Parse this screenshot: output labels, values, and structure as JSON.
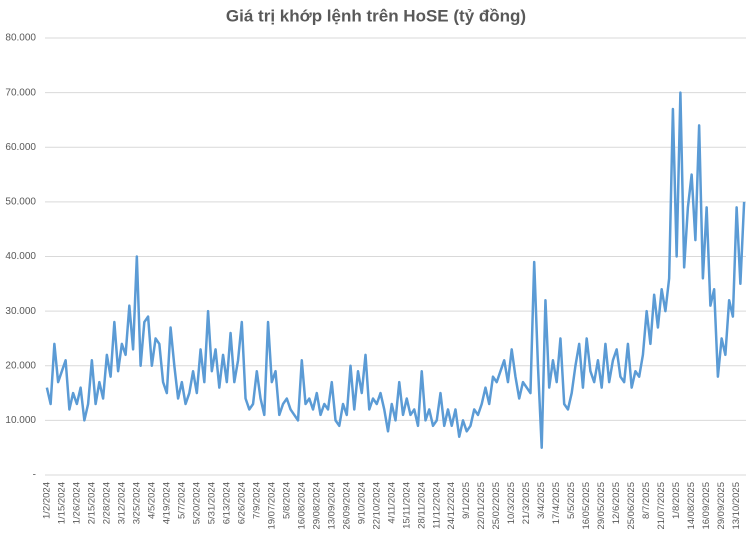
{
  "chart_data": {
    "type": "line",
    "title": "Giá trị khớp lệnh trên HoSE (tỷ đồng)",
    "categories": [
      "1/2/2024",
      null,
      null,
      null,
      "1/15/2024",
      null,
      null,
      null,
      "1/26/2024",
      null,
      null,
      null,
      "2/15/2024",
      null,
      null,
      null,
      "2/28/2024",
      null,
      null,
      null,
      "3/12/2024",
      null,
      null,
      null,
      "3/25/2024",
      null,
      null,
      null,
      "4/5/2024",
      null,
      null,
      null,
      "4/19/2024",
      null,
      null,
      null,
      "5/7/2024",
      null,
      null,
      null,
      "5/20/2024",
      null,
      null,
      null,
      "5/31/2024",
      null,
      null,
      null,
      "6/13/2024",
      null,
      null,
      null,
      "6/26/2024",
      null,
      null,
      null,
      "7/9/2024",
      null,
      null,
      null,
      "19/07/2024",
      null,
      null,
      null,
      "5/8/2024",
      null,
      null,
      null,
      "16/08/2024",
      null,
      null,
      null,
      "29/08/2024",
      null,
      null,
      null,
      "13/09/2024",
      null,
      null,
      null,
      "26/09/2024",
      null,
      null,
      null,
      "9/10/2024",
      null,
      null,
      null,
      "22/10/2024",
      null,
      null,
      null,
      "4/11/2024",
      null,
      null,
      null,
      "15/11/2024",
      null,
      null,
      null,
      "28/11/2024",
      null,
      null,
      null,
      "11/12/2024",
      null,
      null,
      null,
      "24/12/2024",
      null,
      null,
      null,
      "9/1/2025",
      null,
      null,
      null,
      "22/01/2025",
      null,
      null,
      null,
      "25/02/2025",
      null,
      null,
      null,
      "10/3/2025",
      null,
      null,
      null,
      "21/3/2025",
      null,
      null,
      null,
      "3/4/2025",
      null,
      null,
      null,
      "17/4/2025",
      null,
      null,
      null,
      "5/5/2025",
      null,
      null,
      null,
      "16/05/2025",
      null,
      null,
      null,
      "29/05/2025",
      null,
      null,
      null,
      "12/6/2025",
      null,
      null,
      null,
      "25/06/2025",
      null,
      null,
      null,
      "8/7/2025",
      null,
      null,
      null,
      "21/07/2025",
      null,
      null,
      null,
      "1/8/2025",
      null,
      null,
      null,
      "14/08/2025",
      null,
      null,
      null,
      "16/09/2025",
      null,
      null,
      null,
      "29/09/2025",
      null,
      null,
      null,
      "13/10/2025",
      null,
      null
    ],
    "series": [
      {
        "name": "Giá trị khớp lệnh",
        "color": "#5b9bd5",
        "values": [
          16000,
          13000,
          24000,
          17000,
          19000,
          21000,
          12000,
          15000,
          13000,
          16000,
          10000,
          13000,
          21000,
          13000,
          17000,
          14000,
          22000,
          18000,
          28000,
          19000,
          24000,
          22000,
          31000,
          23000,
          40000,
          20000,
          28000,
          29000,
          20000,
          25000,
          24000,
          17000,
          15000,
          27000,
          20000,
          14000,
          17000,
          13000,
          15000,
          19000,
          15000,
          23000,
          17000,
          30000,
          19000,
          23000,
          16000,
          22000,
          17000,
          26000,
          17000,
          21000,
          28000,
          14000,
          12000,
          13000,
          19000,
          14000,
          11000,
          28000,
          17000,
          19000,
          11000,
          13000,
          14000,
          12000,
          11000,
          10000,
          21000,
          13000,
          14000,
          12000,
          15000,
          11000,
          13000,
          12000,
          17000,
          10000,
          9000,
          13000,
          11000,
          20000,
          12000,
          19000,
          15000,
          22000,
          12000,
          14000,
          13000,
          15000,
          12000,
          8000,
          13000,
          10000,
          17000,
          11000,
          14000,
          11000,
          12000,
          9000,
          19000,
          10000,
          12000,
          9000,
          10000,
          15000,
          9000,
          12000,
          9000,
          12000,
          7000,
          10000,
          8000,
          9000,
          12000,
          11000,
          13000,
          16000,
          13000,
          18000,
          17000,
          19000,
          21000,
          17000,
          23000,
          18000,
          14000,
          17000,
          16000,
          15000,
          39000,
          20000,
          5000,
          32000,
          16000,
          21000,
          17000,
          25000,
          13000,
          12000,
          15000,
          20000,
          24000,
          16000,
          25000,
          19000,
          17000,
          21000,
          16000,
          24000,
          17000,
          21000,
          23000,
          18000,
          17000,
          24000,
          16000,
          19000,
          18000,
          22000,
          30000,
          24000,
          33000,
          27000,
          34000,
          30000,
          36000,
          67000,
          40000,
          70000,
          38000,
          49000,
          55000,
          43000,
          64000,
          36000,
          49000,
          31000,
          34000,
          18000,
          25000,
          22000,
          32000,
          29000,
          49000,
          35000,
          50000
        ]
      }
    ],
    "ylim": [
      0,
      80000
    ],
    "yticks": [
      {
        "value": 0,
        "label": "-"
      },
      {
        "value": 10000,
        "label": "10.000"
      },
      {
        "value": 20000,
        "label": "20.000"
      },
      {
        "value": 30000,
        "label": "30.000"
      },
      {
        "value": 40000,
        "label": "40.000"
      },
      {
        "value": 50000,
        "label": "50.000"
      },
      {
        "value": 60000,
        "label": "60.000"
      },
      {
        "value": 70000,
        "label": "70.000"
      },
      {
        "value": 80000,
        "label": "80.000"
      }
    ],
    "grid": true
  }
}
